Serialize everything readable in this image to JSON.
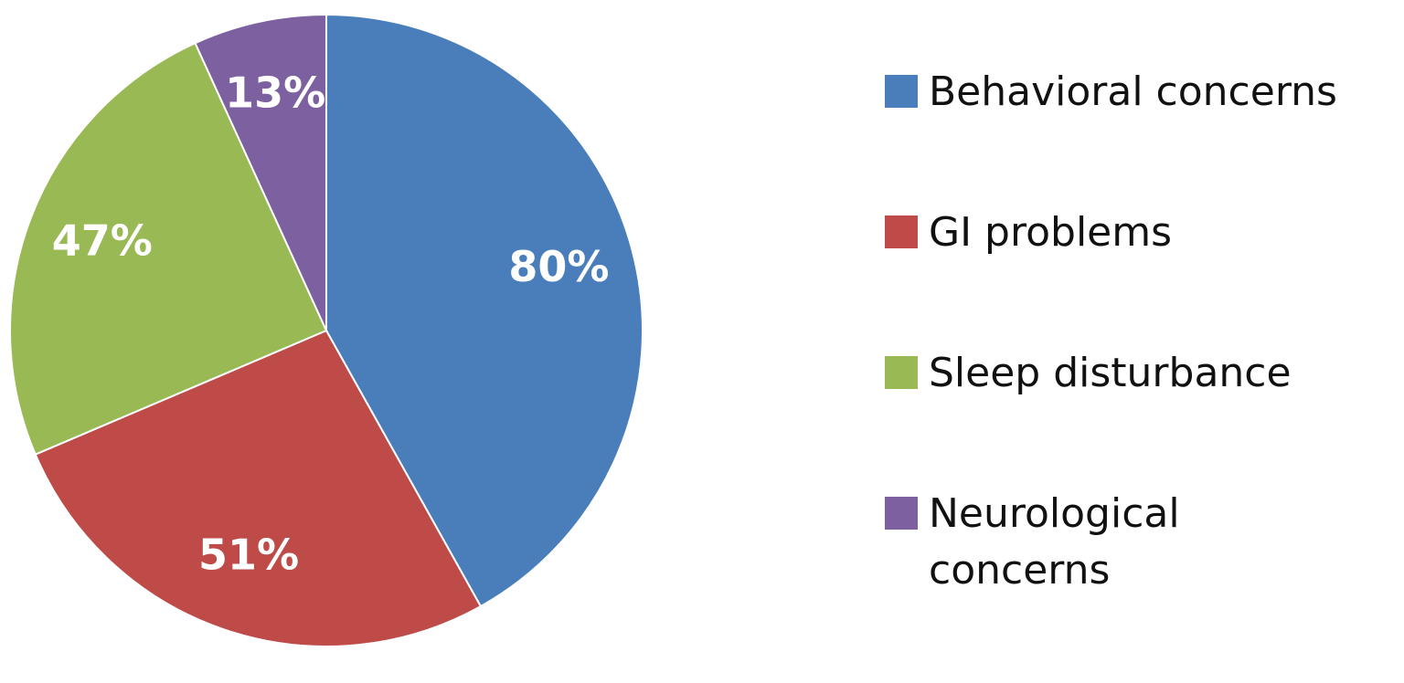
{
  "chart_data": {
    "type": "pie",
    "categories": [
      "Behavioral concerns",
      "GI problems",
      "Sleep disturbance",
      "Neurological concerns"
    ],
    "values": [
      80,
      51,
      47,
      13
    ],
    "value_labels": [
      "80%",
      "51%",
      "47%",
      "13%"
    ],
    "colors": [
      "#4a7ebb",
      "#be4b48",
      "#98b954",
      "#7d60a0"
    ],
    "legend": "right"
  }
}
